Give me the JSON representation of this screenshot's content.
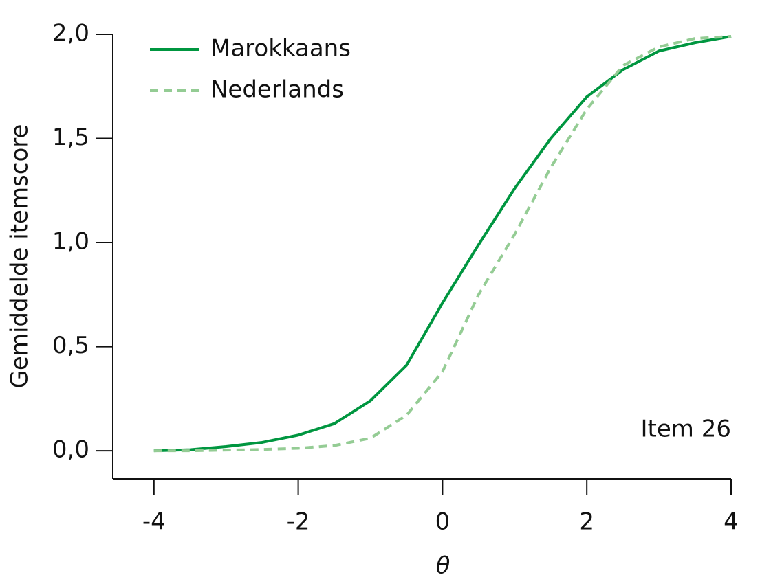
{
  "chart_data": {
    "type": "line",
    "x": [
      -4,
      -3.5,
      -3,
      -2.5,
      -2,
      -1.5,
      -1,
      -0.5,
      0,
      0.5,
      1,
      1.5,
      2,
      2.5,
      3,
      3.5,
      4
    ],
    "series": [
      {
        "name": "Marokkaans",
        "color": "#009640",
        "dash": false,
        "values": [
          0.0,
          0.005,
          0.02,
          0.04,
          0.075,
          0.13,
          0.24,
          0.41,
          0.71,
          0.99,
          1.26,
          1.5,
          1.7,
          1.83,
          1.92,
          1.96,
          1.99
        ]
      },
      {
        "name": "Nederlands",
        "color": "#94cc94",
        "dash": true,
        "values": [
          0.0,
          0.0,
          0.003,
          0.006,
          0.012,
          0.025,
          0.06,
          0.17,
          0.38,
          0.75,
          1.04,
          1.36,
          1.64,
          1.85,
          1.94,
          1.98,
          1.99
        ]
      }
    ],
    "xlabel": "θ",
    "ylabel": "Gemiddelde itemscore",
    "annotation": "Item 26",
    "xlim": [
      -4.57,
      4
    ],
    "ylim": [
      -0.135,
      2.0
    ],
    "xticks": [
      -4,
      -2,
      0,
      2,
      4
    ],
    "yticks": [
      {
        "value": 0,
        "label": "0,0"
      },
      {
        "value": 0.5,
        "label": "0,5"
      },
      {
        "value": 1,
        "label": "1,0"
      },
      {
        "value": 1.5,
        "label": "1,5"
      },
      {
        "value": 2,
        "label": "2,0"
      }
    ],
    "legend": "top-left"
  }
}
